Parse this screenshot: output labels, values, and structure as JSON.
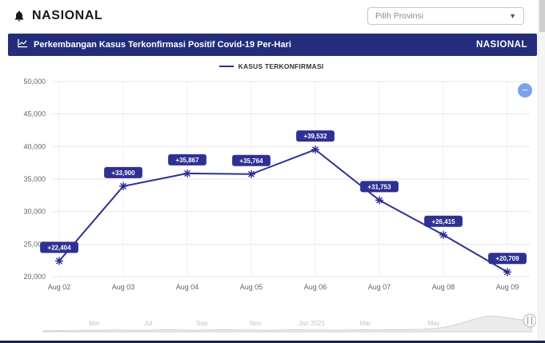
{
  "header": {
    "brand": "NASIONAL",
    "province_select": {
      "placeholder": "Pilih Provinsi"
    }
  },
  "banner": {
    "title": "Perkembangan Kasus Terkonfirmasi Positif Covid-19 Per-Hari",
    "region_label": "NASIONAL"
  },
  "chart_data": {
    "type": "line",
    "title": "Perkembangan Kasus Terkonfirmasi Positif Covid-19 Per-Hari",
    "legend_position": "top",
    "grid": true,
    "categories": [
      "Aug 02",
      "Aug 03",
      "Aug 04",
      "Aug 05",
      "Aug 06",
      "Aug 07",
      "Aug 08",
      "Aug 09"
    ],
    "series": [
      {
        "name": "KASUS TERKONFIRMASI",
        "values": [
          22404,
          33900,
          35867,
          35764,
          39532,
          31753,
          26415,
          20709
        ],
        "color": "#2e3192"
      }
    ],
    "point_labels": [
      "+22,404",
      "+33,900",
      "+35,867",
      "+35,764",
      "+39,532",
      "+31,753",
      "+26,415",
      "+20,709"
    ],
    "ylim": [
      20000,
      50000
    ],
    "yticks": [
      20000,
      25000,
      30000,
      35000,
      40000,
      45000,
      50000
    ],
    "ytick_labels": [
      "20,000",
      "25,000",
      "30,000",
      "35,000",
      "40,000",
      "45,000",
      "50,000"
    ]
  },
  "navigator": {
    "axis_labels": [
      "Mar",
      "Jul",
      "Sep",
      "Nov",
      "Jan 2021",
      "Mar",
      "May"
    ],
    "curve": [
      0.06,
      0.08,
      0.07,
      0.1,
      0.09,
      0.12,
      0.1,
      0.09,
      0.11,
      0.13,
      0.11,
      0.1,
      0.12,
      0.14,
      0.12,
      0.11,
      0.1,
      0.11,
      0.13,
      0.12,
      0.11,
      0.1,
      0.11,
      0.13,
      0.12,
      0.14,
      0.13,
      0.15,
      0.2,
      0.32,
      0.55,
      0.82,
      1.0,
      0.92,
      0.78,
      0.7
    ]
  },
  "controls": {
    "zoom_out_label": "−"
  },
  "colors": {
    "navy_banner": "#232d7b",
    "series": "#2e3192",
    "badge": "#2e3192",
    "zoom_button": "#7aa2ec"
  }
}
